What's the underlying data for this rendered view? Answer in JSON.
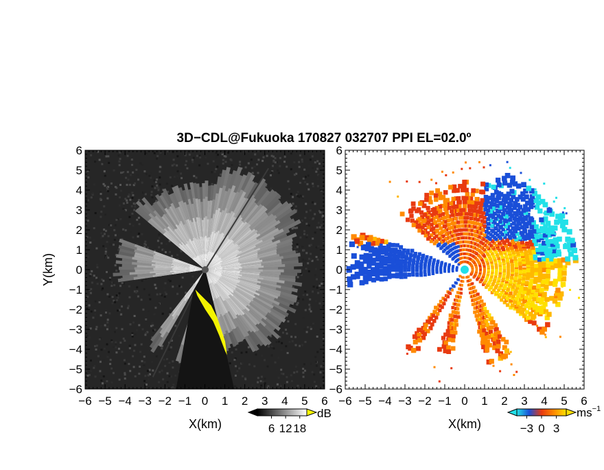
{
  "title": "3D−CDL@Fukuoka 170827 032707 PPI EL=02.0º",
  "chart_data": [
    {
      "type": "heatmap",
      "panel": "snr",
      "xlabel": "X(km)",
      "ylabel": "Y(km)",
      "xlim": [
        -6,
        6
      ],
      "ylim": [
        -6,
        6
      ],
      "xticks": [
        "−6",
        "−5",
        "−4",
        "−3",
        "−2",
        "−1",
        "0",
        "1",
        "2",
        "3",
        "4",
        "5",
        "6"
      ],
      "yticks": [
        "6",
        "5",
        "4",
        "3",
        "2",
        "1",
        "0",
        "−1",
        "−2",
        "−3",
        "−4",
        "−5",
        "−6"
      ],
      "grid": false,
      "colorbar": {
        "unit": "dB",
        "tick_labels": [
          "6",
          "12",
          "18"
        ],
        "tick_values": [
          6,
          12,
          18
        ],
        "range": [
          0,
          21
        ],
        "colors": [
          "#000000",
          "#ffffff"
        ],
        "over_color": "#ffff00",
        "under_color": "#000000"
      },
      "radar_center": [
        0,
        0
      ],
      "radar_center_color": "#555555"
    },
    {
      "type": "heatmap",
      "panel": "doppler_velocity",
      "xlabel": "X(km)",
      "ylabel": "",
      "xlim": [
        -6,
        6
      ],
      "ylim": [
        -6,
        6
      ],
      "xticks": [
        "−6",
        "−5",
        "−4",
        "−3",
        "−2",
        "−1",
        "0",
        "1",
        "2",
        "3",
        "4",
        "5",
        "6"
      ],
      "yticks": [
        "6",
        "5",
        "4",
        "3",
        "2",
        "1",
        "0",
        "−1",
        "−2",
        "−3",
        "−4",
        "−5",
        "−6"
      ],
      "grid": false,
      "colorbar": {
        "unit": "ms",
        "unit_exponent": "−1",
        "tick_labels": [
          "−3",
          "0",
          "3"
        ],
        "tick_values": [
          -3,
          0,
          3
        ],
        "range": [
          -5,
          5
        ],
        "colors": [
          "#22e0e8",
          "#1a4fd8",
          "#e83a10",
          "#ff8a00",
          "#ffe000"
        ],
        "under_color": "#22e0e8",
        "over_color": "#ffe000"
      },
      "radar_center": [
        0,
        0
      ],
      "radar_center_color": "#22e0e8"
    }
  ]
}
